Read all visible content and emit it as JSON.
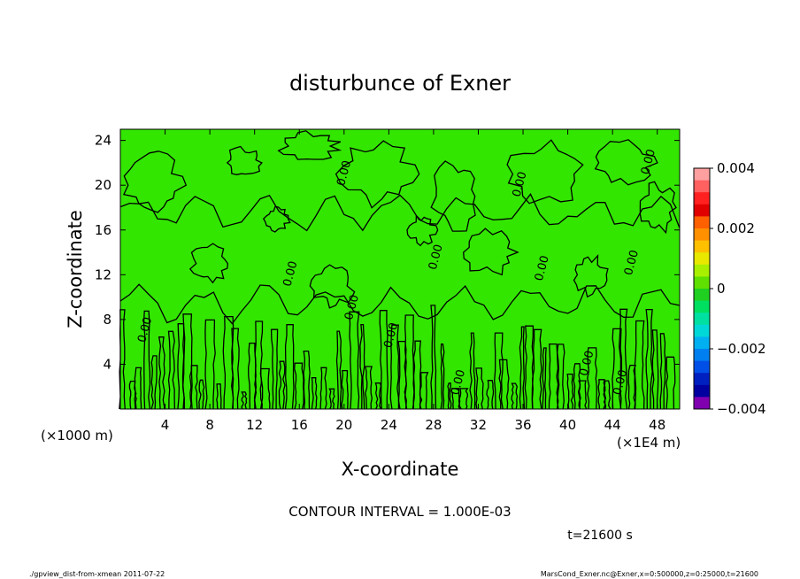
{
  "chart_data": {
    "type": "heatmap",
    "title": "disturbunce of Exner",
    "xlabel": "X-coordinate",
    "ylabel": "Z-coordinate",
    "x_ticks": [
      "4",
      "8",
      "12",
      "16",
      "20",
      "24",
      "28",
      "32",
      "36",
      "40",
      "44",
      "48"
    ],
    "y_ticks": [
      "4",
      "8",
      "12",
      "16",
      "20",
      "24"
    ],
    "xlim": [
      0,
      50
    ],
    "ylim": [
      0,
      25
    ],
    "x_unit": "(×1E4 m)",
    "y_unit": "(×1000 m)",
    "colorbar": {
      "labels": [
        "0.004",
        "0.002",
        "0",
        "−0.002",
        "−0.004"
      ],
      "values": [
        0.004,
        0.002,
        0,
        -0.002,
        -0.004
      ],
      "colors": [
        "#ffa0a0",
        "#ff6060",
        "#ff2020",
        "#e00000",
        "#ff6000",
        "#ff9000",
        "#ffc000",
        "#e8e800",
        "#a8f000",
        "#60e000",
        "#20d020",
        "#00e060",
        "#00e0a0",
        "#00d8d8",
        "#00b0f0",
        "#0080f0",
        "#0050e8",
        "#0020c0",
        "#0000a0",
        "#8000b0"
      ],
      "lim": [
        -0.004,
        0.004
      ]
    },
    "field_fill_color": "#33e600",
    "contour_labels": [
      "0.00"
    ],
    "contour_interval_text": "CONTOUR INTERVAL = 1.000E-03",
    "time_label": "t=21600 s"
  },
  "footer": {
    "left": "./gpview_dist-from-xmean  2011-07-22",
    "right": "MarsCond_Exner.nc@Exner,x=0:500000,z=0:25000,t=21600"
  }
}
